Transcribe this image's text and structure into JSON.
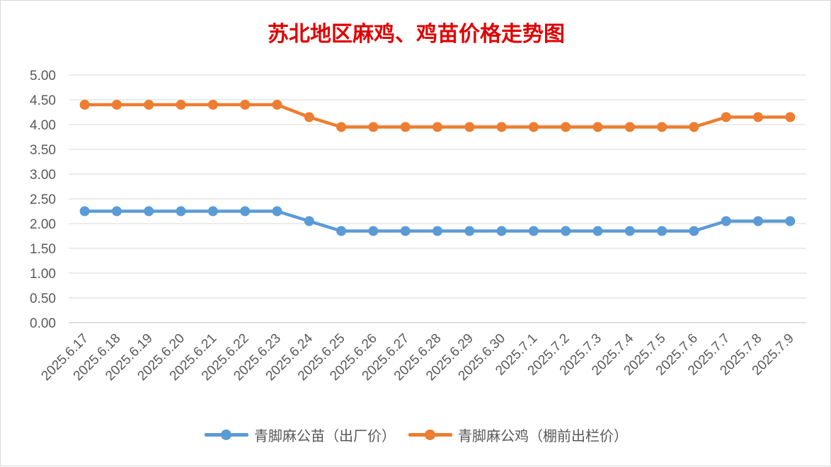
{
  "chart_data": {
    "type": "line",
    "title": "苏北地区麻鸡、鸡苗价格走势图",
    "categories": [
      "2025.6.17",
      "2025.6.18",
      "2025.6.19",
      "2025.6.20",
      "2025.6.21",
      "2025.6.22",
      "2025.6.23",
      "2025.6.24",
      "2025.6.25",
      "2025.6.26",
      "2025.6.27",
      "2025.6.28",
      "2025.6.29",
      "2025.6.30",
      "2025.7.1",
      "2025.7.2",
      "2025.7.3",
      "2025.7.4",
      "2025.7.5",
      "2025.7.6",
      "2025.7.7",
      "2025.7.8",
      "2025.7.9"
    ],
    "y_ticks": [
      "0.00",
      "0.50",
      "1.00",
      "1.50",
      "2.00",
      "2.50",
      "3.00",
      "3.50",
      "4.00",
      "4.50",
      "5.00"
    ],
    "ylim": [
      0,
      5
    ],
    "grid": true,
    "legend_position": "bottom",
    "series": [
      {
        "name": "青脚麻公苗（出厂价）",
        "color": "#5b9bd5",
        "values": [
          2.25,
          2.25,
          2.25,
          2.25,
          2.25,
          2.25,
          2.25,
          2.05,
          1.85,
          1.85,
          1.85,
          1.85,
          1.85,
          1.85,
          1.85,
          1.85,
          1.85,
          1.85,
          1.85,
          1.85,
          2.05,
          2.05,
          2.05
        ]
      },
      {
        "name": "青脚麻公鸡（棚前出栏价）",
        "color": "#ed7d31",
        "values": [
          4.4,
          4.4,
          4.4,
          4.4,
          4.4,
          4.4,
          4.4,
          4.15,
          3.95,
          3.95,
          3.95,
          3.95,
          3.95,
          3.95,
          3.95,
          3.95,
          3.95,
          3.95,
          3.95,
          3.95,
          4.15,
          4.15,
          4.15
        ]
      }
    ]
  }
}
